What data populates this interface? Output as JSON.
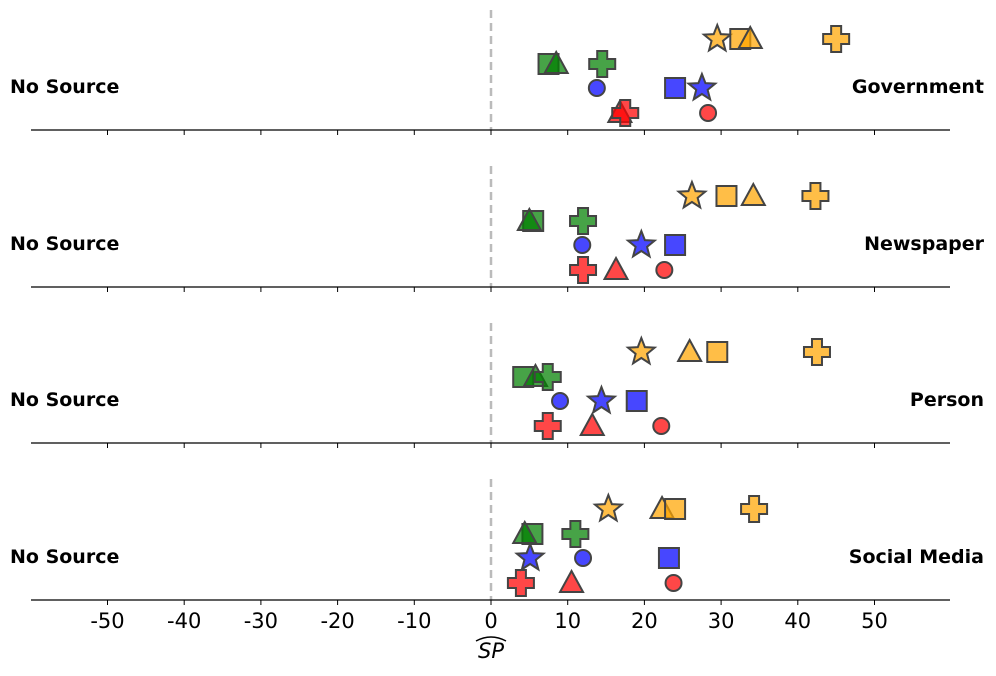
{
  "chart_data": {
    "type": "scatter",
    "xlabel": "SP (hat)",
    "xlabel_text": "SP",
    "xlim": [
      -60,
      60
    ],
    "x_ticks": [
      -50,
      -40,
      -30,
      -20,
      -10,
      0,
      10,
      20,
      30,
      40,
      50
    ],
    "x_tick_labels": [
      "-50",
      "-40",
      "-30",
      "-20",
      "-10",
      "0",
      "10",
      "20",
      "30",
      "40",
      "50"
    ],
    "reference_line_x": 0,
    "series_colors": {
      "orange": "#FFA500",
      "green": "#008000",
      "blue": "#0000FF",
      "red": "#FF0000"
    },
    "panels": [
      {
        "left_label": "No Source",
        "right_label": "Government",
        "points": [
          {
            "color": "orange",
            "marker": "star",
            "x": 29.5
          },
          {
            "color": "orange",
            "marker": "square",
            "x": 32.5
          },
          {
            "color": "orange",
            "marker": "triangle",
            "x": 33.8
          },
          {
            "color": "orange",
            "marker": "plus",
            "x": 45.0
          },
          {
            "color": "green",
            "marker": "square",
            "x": 7.5
          },
          {
            "color": "green",
            "marker": "triangle",
            "x": 8.5
          },
          {
            "color": "green",
            "marker": "plus",
            "x": 14.5
          },
          {
            "color": "blue",
            "marker": "circle",
            "x": 13.8
          },
          {
            "color": "blue",
            "marker": "square",
            "x": 24.0
          },
          {
            "color": "blue",
            "marker": "star",
            "x": 27.5
          },
          {
            "color": "red",
            "marker": "triangle",
            "x": 16.8
          },
          {
            "color": "red",
            "marker": "plus",
            "x": 17.5
          },
          {
            "color": "red",
            "marker": "circle",
            "x": 28.3
          }
        ]
      },
      {
        "left_label": "No Source",
        "right_label": "Newspaper",
        "points": [
          {
            "color": "orange",
            "marker": "star",
            "x": 26.2
          },
          {
            "color": "orange",
            "marker": "square",
            "x": 30.7
          },
          {
            "color": "orange",
            "marker": "triangle",
            "x": 34.2
          },
          {
            "color": "orange",
            "marker": "plus",
            "x": 42.3
          },
          {
            "color": "green",
            "marker": "square",
            "x": 5.5
          },
          {
            "color": "green",
            "marker": "triangle",
            "x": 5.0
          },
          {
            "color": "green",
            "marker": "plus",
            "x": 12.0
          },
          {
            "color": "blue",
            "marker": "circle",
            "x": 11.9
          },
          {
            "color": "blue",
            "marker": "star",
            "x": 19.6
          },
          {
            "color": "blue",
            "marker": "square",
            "x": 24.0
          },
          {
            "color": "red",
            "marker": "plus",
            "x": 12.0
          },
          {
            "color": "red",
            "marker": "triangle",
            "x": 16.3
          },
          {
            "color": "red",
            "marker": "circle",
            "x": 22.6
          }
        ]
      },
      {
        "left_label": "No Source",
        "right_label": "Person",
        "points": [
          {
            "color": "orange",
            "marker": "star",
            "x": 19.6
          },
          {
            "color": "orange",
            "marker": "triangle",
            "x": 25.9
          },
          {
            "color": "orange",
            "marker": "square",
            "x": 29.5
          },
          {
            "color": "orange",
            "marker": "plus",
            "x": 42.5
          },
          {
            "color": "green",
            "marker": "square",
            "x": 4.2
          },
          {
            "color": "green",
            "marker": "triangle",
            "x": 5.8
          },
          {
            "color": "green",
            "marker": "plus",
            "x": 7.4
          },
          {
            "color": "blue",
            "marker": "circle",
            "x": 9.0
          },
          {
            "color": "blue",
            "marker": "star",
            "x": 14.4
          },
          {
            "color": "blue",
            "marker": "square",
            "x": 19.0
          },
          {
            "color": "red",
            "marker": "plus",
            "x": 7.4
          },
          {
            "color": "red",
            "marker": "triangle",
            "x": 13.2
          },
          {
            "color": "red",
            "marker": "circle",
            "x": 22.2
          }
        ]
      },
      {
        "left_label": "No Source",
        "right_label": "Social Media",
        "points": [
          {
            "color": "orange",
            "marker": "star",
            "x": 15.3
          },
          {
            "color": "orange",
            "marker": "triangle",
            "x": 22.3
          },
          {
            "color": "orange",
            "marker": "square",
            "x": 24.0
          },
          {
            "color": "orange",
            "marker": "plus",
            "x": 34.3
          },
          {
            "color": "green",
            "marker": "square",
            "x": 5.4
          },
          {
            "color": "green",
            "marker": "triangle",
            "x": 4.4
          },
          {
            "color": "green",
            "marker": "plus",
            "x": 11.0
          },
          {
            "color": "blue",
            "marker": "star",
            "x": 5.1
          },
          {
            "color": "blue",
            "marker": "circle",
            "x": 12.0
          },
          {
            "color": "blue",
            "marker": "square",
            "x": 23.2
          },
          {
            "color": "red",
            "marker": "plus",
            "x": 3.9
          },
          {
            "color": "red",
            "marker": "triangle",
            "x": 10.5
          },
          {
            "color": "red",
            "marker": "circle",
            "x": 23.8
          }
        ]
      }
    ]
  }
}
